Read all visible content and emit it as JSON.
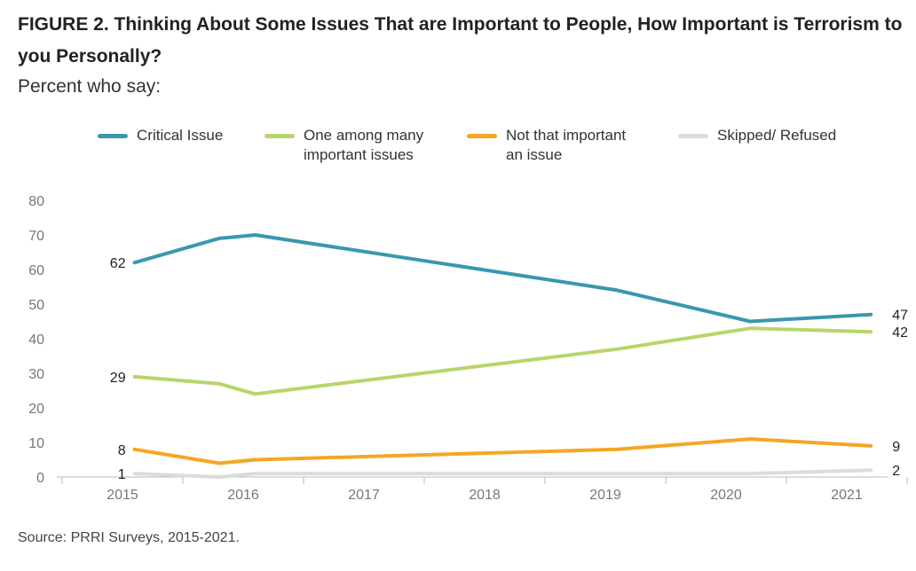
{
  "header": {
    "title": "FIGURE 2.  Thinking About Some Issues That are Important to People, How Important is Terrorism to you Personally?",
    "subtitle": "Percent who say:"
  },
  "footer": {
    "source": "Source: PRRI Surveys, 2015-2021."
  },
  "colors": {
    "critical": "#3a97ad",
    "one_among": "#b8d56a",
    "not_important": "#f5a623",
    "skipped": "#dcdcdc",
    "axis": "#bbbbbb",
    "tick_text": "#777777"
  },
  "chart_data": {
    "type": "line",
    "title": "",
    "xlabel": "",
    "ylabel": "",
    "x_ticks": [
      "2015",
      "2016",
      "2017",
      "2018",
      "2019",
      "2020",
      "2021"
    ],
    "y_ticks": [
      "0",
      "10",
      "20",
      "30",
      "40",
      "50",
      "60",
      "70",
      "80"
    ],
    "ylim": [
      0,
      80
    ],
    "grid": false,
    "legend_position": "top",
    "x": [
      2015.1,
      2015.8,
      2016.1,
      2019.1,
      2020.2,
      2021.2
    ],
    "series": [
      {
        "name": "Critical Issue",
        "color_key": "critical",
        "values": [
          62,
          69,
          70,
          54,
          45,
          47
        ],
        "labels": [
          {
            "index": 0,
            "text": "62",
            "side": "left"
          },
          {
            "index": 5,
            "text": "47",
            "side": "right"
          }
        ]
      },
      {
        "name": "One among many\nimportant issues",
        "color_key": "one_among",
        "values": [
          29,
          27,
          24,
          37,
          43,
          42
        ],
        "labels": [
          {
            "index": 0,
            "text": "29",
            "side": "left"
          },
          {
            "index": 5,
            "text": "42",
            "side": "right"
          }
        ]
      },
      {
        "name": "Not that important\nan issue",
        "color_key": "not_important",
        "values": [
          8,
          4,
          5,
          8,
          11,
          9
        ],
        "labels": [
          {
            "index": 0,
            "text": "8",
            "side": "left"
          },
          {
            "index": 5,
            "text": "9",
            "side": "right"
          }
        ]
      },
      {
        "name": "Skipped/ Refused",
        "color_key": "skipped",
        "values": [
          1,
          0,
          1,
          1,
          1,
          2
        ],
        "labels": [
          {
            "index": 0,
            "text": "1",
            "side": "left"
          },
          {
            "index": 5,
            "text": "2",
            "side": "right"
          }
        ]
      }
    ]
  }
}
